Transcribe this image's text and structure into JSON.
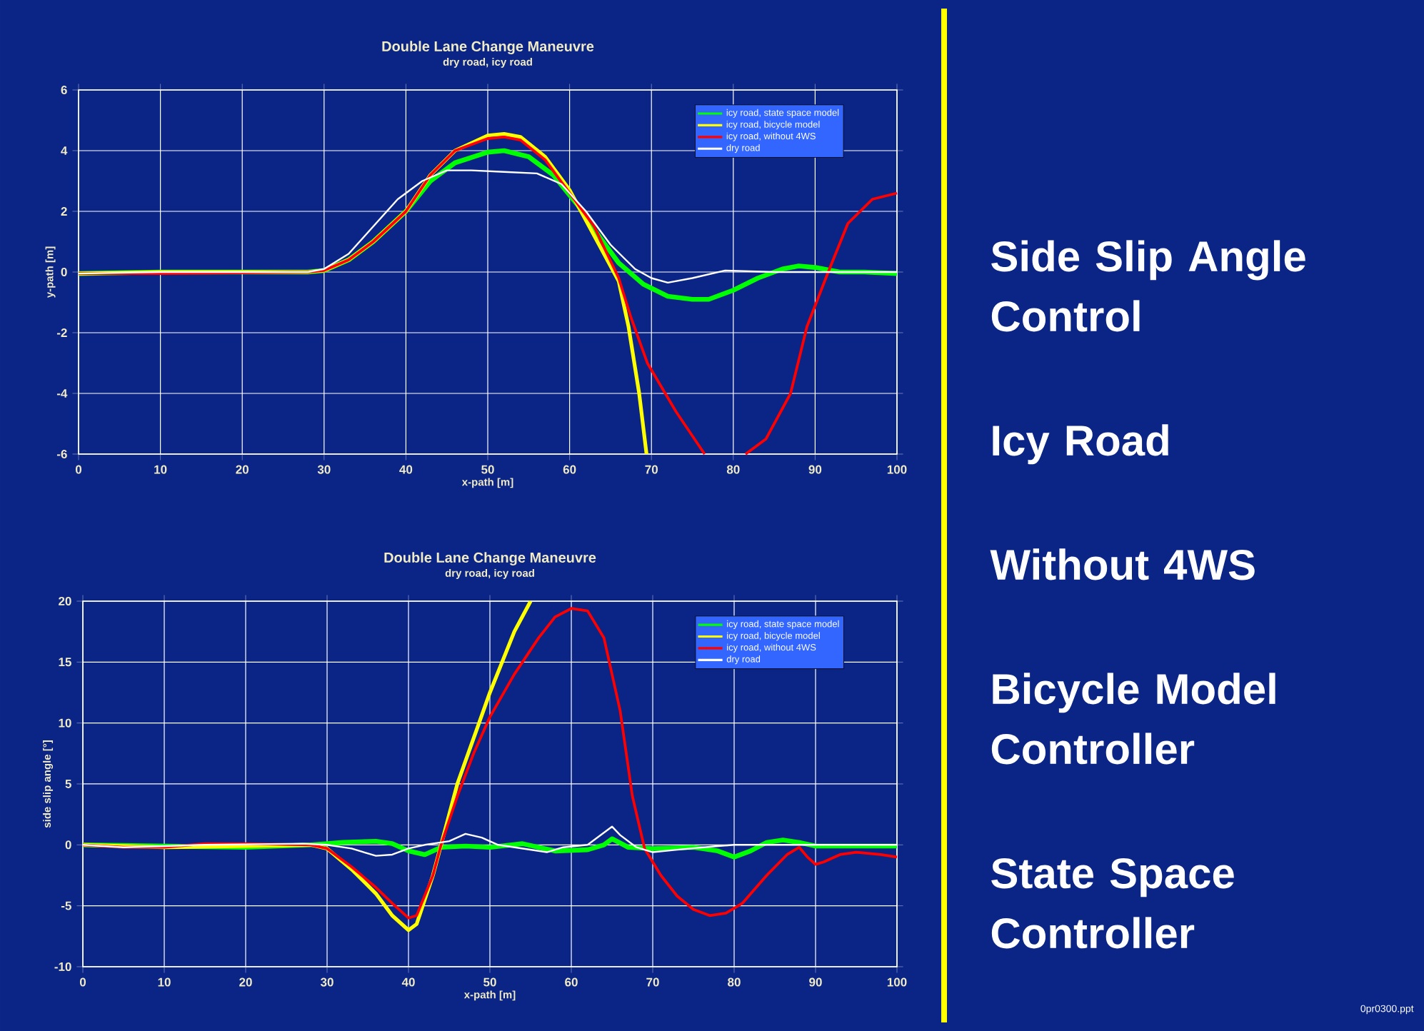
{
  "chart_data": [
    {
      "type": "line",
      "title": "Double Lane Change Maneuvre",
      "subtitle": "dry road, icy road",
      "xlabel": "x-path [m]",
      "ylabel": "y-path [m]",
      "xlim": [
        0,
        100
      ],
      "ylim": [
        -6,
        6
      ],
      "xticks": [
        0,
        10,
        20,
        30,
        40,
        50,
        60,
        70,
        80,
        90,
        100
      ],
      "yticks": [
        -6,
        -4,
        -2,
        0,
        2,
        4,
        6
      ],
      "grid": true,
      "legend": "top right",
      "series": [
        {
          "name": "icy road, state space model",
          "color": "#00ff00",
          "x": [
            0,
            10,
            28,
            30,
            33,
            36,
            40,
            43,
            46,
            50,
            52,
            55,
            58,
            61,
            63,
            66,
            69,
            72,
            75,
            77,
            80,
            83,
            86,
            88,
            90,
            93,
            96,
            100
          ],
          "values": [
            -0.05,
            0,
            0,
            0.05,
            0.4,
            1.0,
            2.0,
            3.0,
            3.6,
            3.95,
            4.0,
            3.8,
            3.2,
            2.2,
            1.4,
            0.3,
            -0.4,
            -0.8,
            -0.9,
            -0.9,
            -0.6,
            -0.2,
            0.1,
            0.2,
            0.15,
            0.0,
            0.0,
            -0.05
          ]
        },
        {
          "name": "icy road, bicycle model",
          "color": "#ffff00",
          "x": [
            0,
            10,
            28,
            30,
            33,
            36,
            40,
            43,
            46,
            50,
            52,
            54,
            57,
            60,
            63,
            66,
            67.2,
            68.5,
            69.4
          ],
          "values": [
            -0.05,
            0,
            0,
            0.05,
            0.4,
            1.0,
            2.0,
            3.2,
            4.0,
            4.5,
            4.55,
            4.45,
            3.8,
            2.7,
            1.2,
            -0.3,
            -1.8,
            -4.0,
            -6.0
          ]
        },
        {
          "name": "icy road, without 4WS",
          "color": "#ff0000",
          "x": [
            0,
            10,
            28,
            30,
            33,
            36,
            40,
            43,
            46,
            50,
            52,
            54,
            57,
            60,
            63,
            66,
            67.5,
            69.5,
            73,
            76.5,
            79,
            81.5,
            84,
            87,
            89,
            91.6,
            94,
            97,
            100
          ],
          "values": [
            -0.05,
            -0.05,
            0,
            0.05,
            0.4,
            1.0,
            2.0,
            3.2,
            4.0,
            4.4,
            4.45,
            4.35,
            3.7,
            2.6,
            1.5,
            -0.2,
            -1.5,
            -3.0,
            -4.6,
            -6.0,
            null,
            -6.0,
            -5.5,
            -4.0,
            -1.8,
            0.0,
            1.6,
            2.4,
            2.6
          ]
        },
        {
          "name": "dry road",
          "color": "#ffffff",
          "x": [
            0,
            10,
            28,
            30,
            33,
            36,
            39,
            42,
            45,
            48,
            52,
            56,
            59,
            62,
            65,
            68,
            70,
            72,
            75,
            79,
            85,
            100
          ],
          "values": [
            -0.05,
            0,
            0,
            0.1,
            0.6,
            1.5,
            2.4,
            3.0,
            3.35,
            3.35,
            3.3,
            3.25,
            2.9,
            2.0,
            0.9,
            0.1,
            -0.2,
            -0.35,
            -0.2,
            0.05,
            0.0,
            0.0
          ]
        }
      ]
    },
    {
      "type": "line",
      "title": "Double Lane Change Maneuvre",
      "subtitle": "dry road, icy road",
      "xlabel": "x-path [m]",
      "ylabel": "side slip angle [°]",
      "xlim": [
        0,
        100
      ],
      "ylim": [
        -10,
        20
      ],
      "xticks": [
        0,
        10,
        20,
        30,
        40,
        50,
        60,
        70,
        80,
        90,
        100
      ],
      "yticks": [
        -10,
        -5,
        0,
        5,
        10,
        15,
        20
      ],
      "grid": true,
      "legend": "top right",
      "series": [
        {
          "name": "icy road, state space model",
          "color": "#00ff00",
          "x": [
            0,
            20,
            28,
            32,
            36,
            38,
            40,
            42,
            44,
            47,
            50,
            54,
            56,
            58,
            62,
            64,
            65,
            67,
            70,
            75,
            78,
            80,
            82,
            84,
            86,
            88,
            90,
            95,
            100
          ],
          "values": [
            0,
            -0.2,
            0,
            0.2,
            0.3,
            0.1,
            -0.5,
            -0.8,
            -0.2,
            -0.1,
            -0.2,
            0.1,
            -0.2,
            -0.5,
            -0.4,
            0,
            0.5,
            -0.2,
            -0.3,
            -0.2,
            -0.5,
            -1.0,
            -0.5,
            0.2,
            0.4,
            0.2,
            -0.1,
            -0.1,
            -0.1
          ]
        },
        {
          "name": "icy road, bicycle model",
          "color": "#ffff00",
          "x": [
            0,
            10,
            28,
            30,
            33,
            36,
            38,
            40,
            41,
            43,
            44,
            46,
            50,
            53,
            55
          ],
          "values": [
            0,
            -0.2,
            0,
            -0.3,
            -2.0,
            -4.0,
            -5.8,
            -7.0,
            -6.5,
            -2.5,
            0,
            5,
            12.5,
            17.5,
            20
          ]
        },
        {
          "name": "icy road, without 4WS",
          "color": "#ff0000",
          "x": [
            0,
            5,
            10,
            15,
            20,
            28,
            30,
            33,
            36,
            38,
            40,
            41,
            43,
            44,
            46,
            48,
            50,
            53,
            56,
            58,
            60,
            62,
            64,
            66,
            67.5,
            69,
            71,
            73,
            75,
            77,
            79,
            81,
            84,
            86.5,
            88,
            89,
            90,
            91,
            93,
            95,
            98,
            100
          ],
          "values": [
            0,
            -0.2,
            -0.2,
            0.1,
            0.1,
            0,
            -0.3,
            -1.8,
            -3.5,
            -4.8,
            -6.0,
            -5.8,
            -2.5,
            0,
            4,
            7.5,
            10.5,
            14,
            17,
            18.7,
            19.4,
            19.2,
            17,
            11,
            4,
            -0.3,
            -2.5,
            -4.2,
            -5.3,
            -5.8,
            -5.6,
            -4.8,
            -2.5,
            -0.8,
            -0.2,
            -1.0,
            -1.6,
            -1.4,
            -0.8,
            -0.6,
            -0.8,
            -1.0
          ]
        },
        {
          "name": "dry road",
          "color": "#ffffff",
          "x": [
            0,
            5,
            15,
            27,
            30,
            33,
            36,
            38,
            40,
            42,
            45,
            47,
            49,
            51,
            54,
            57,
            59,
            62,
            64,
            65,
            66,
            68,
            70,
            73,
            78,
            80,
            100
          ],
          "values": [
            0,
            -0.2,
            0,
            0.1,
            0,
            -0.3,
            -0.9,
            -0.8,
            -0.3,
            0,
            0.3,
            0.9,
            0.6,
            0,
            -0.3,
            -0.6,
            -0.2,
            0,
            1.0,
            1.5,
            0.8,
            -0.2,
            -0.6,
            -0.4,
            -0.1,
            0,
            0
          ]
        }
      ]
    },
    {
      "type": "other",
      "annotations": [
        "Side Slip Angle Control",
        "Icy Road",
        "Without 4WS",
        "Bicycle Model Controller",
        "State Space Controller",
        "0pr0300.ppt"
      ]
    }
  ]
}
